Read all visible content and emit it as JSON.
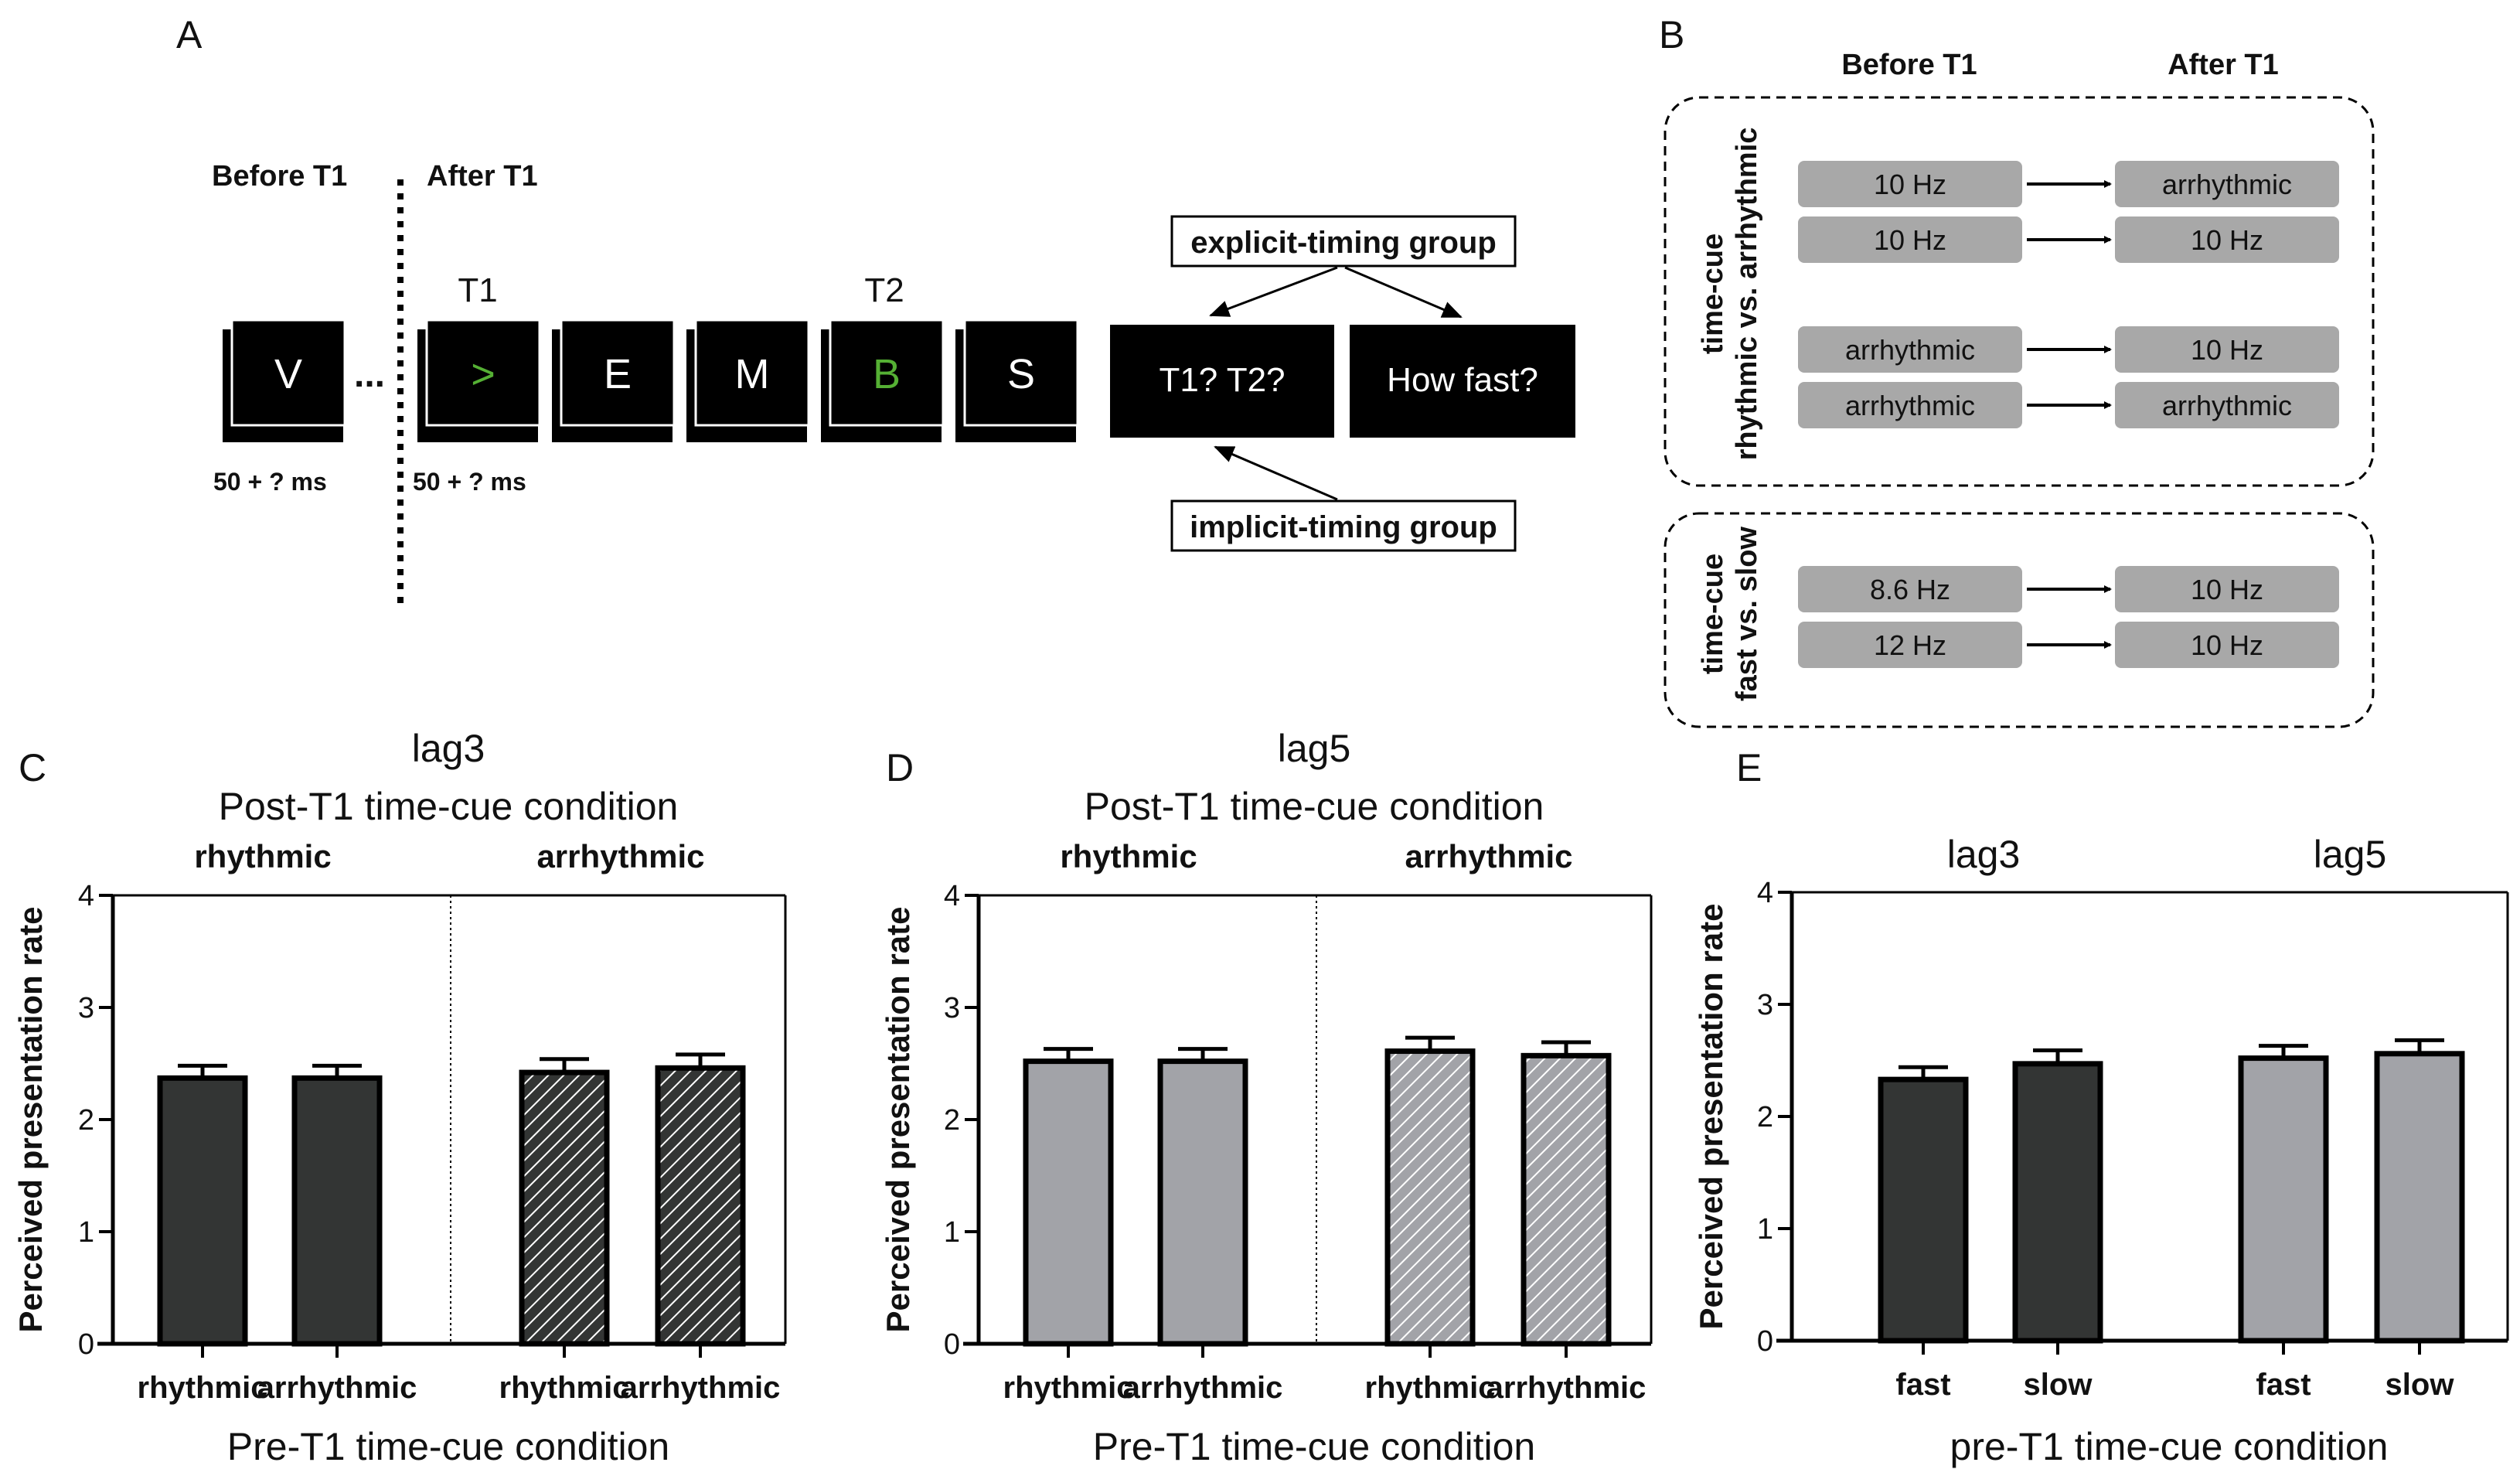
{
  "panels": {
    "A": "A",
    "B": "B",
    "C": "C",
    "D": "D",
    "E": "E"
  },
  "panel_a": {
    "before_label": "Before T1",
    "after_label": "After T1",
    "t1_label": "T1",
    "t2_label": "T2",
    "ellipsis": "...",
    "duration_before": "50 + ? ms",
    "duration_after": "50 + ? ms",
    "frames": [
      {
        "char": "V",
        "color": "#ffffff"
      },
      {
        "char": ">",
        "color": "#55b034"
      },
      {
        "char": "E",
        "color": "#ffffff"
      },
      {
        "char": "M",
        "color": "#ffffff"
      },
      {
        "char": "B",
        "color": "#55b034"
      },
      {
        "char": "S",
        "color": "#ffffff"
      }
    ],
    "question_1": "T1? T2?",
    "question_2": "How fast?",
    "explicit_group": "explicit-timing group",
    "implicit_group": "implicit-timing group"
  },
  "panel_b": {
    "before_label": "Before T1",
    "after_label": "After T1",
    "box1_label_line1": "time-cue",
    "box1_label_line2": "rhythmic vs. arrhythmic",
    "box2_label_line1": "time-cue",
    "box2_label_line2": "fast vs. slow",
    "rows": [
      {
        "before": "10 Hz",
        "after": "arrhythmic"
      },
      {
        "before": "10 Hz",
        "after": "10 Hz"
      },
      {
        "before": "arrhythmic",
        "after": "10 Hz"
      },
      {
        "before": "arrhythmic",
        "after": "arrhythmic"
      },
      {
        "before": "8.6 Hz",
        "after": "10 Hz"
      },
      {
        "before": "12 Hz",
        "after": "10 Hz"
      }
    ]
  },
  "colors": {
    "dark": "#333534",
    "light": "#a2a3a8",
    "bar_border": "#000000",
    "hatch": "#ffffff"
  },
  "chart_data": [
    {
      "type": "bar",
      "panel": "C",
      "title_line1": "lag3",
      "title_line2": "Post-T1 time-cue condition",
      "group_labels": [
        "rhythmic",
        "arrhythmic"
      ],
      "categories": [
        "rhythmic",
        "arrhythmic",
        "rhythmic",
        "arrhythmic"
      ],
      "values": [
        2.37,
        2.37,
        2.42,
        2.46
      ],
      "errors": [
        0.11,
        0.11,
        0.12,
        0.12
      ],
      "hatched": [
        false,
        false,
        true,
        true
      ],
      "fill": [
        "dark",
        "dark",
        "dark",
        "dark"
      ],
      "xlabel": "Pre-T1 time-cue condition",
      "ylabel": "Perceived presentation rate",
      "ylim": [
        0,
        4
      ],
      "yticks": [
        "0",
        "1",
        "2",
        "3",
        "4"
      ]
    },
    {
      "type": "bar",
      "panel": "D",
      "title_line1": "lag5",
      "title_line2": "Post-T1 time-cue condition",
      "group_labels": [
        "rhythmic",
        "arrhythmic"
      ],
      "categories": [
        "rhythmic",
        "arrhythmic",
        "rhythmic",
        "arrhythmic"
      ],
      "values": [
        2.52,
        2.52,
        2.61,
        2.57
      ],
      "errors": [
        0.11,
        0.11,
        0.12,
        0.12
      ],
      "hatched": [
        false,
        false,
        true,
        true
      ],
      "fill": [
        "light",
        "light",
        "light",
        "light"
      ],
      "xlabel": "Pre-T1 time-cue condition",
      "ylabel": "Perceived presentation rate",
      "ylim": [
        0,
        4
      ],
      "yticks": [
        "0",
        "1",
        "2",
        "3",
        "4"
      ]
    },
    {
      "type": "bar",
      "panel": "E",
      "group_labels": [
        "lag3",
        "lag5"
      ],
      "categories": [
        "fast",
        "slow",
        "fast",
        "slow"
      ],
      "values": [
        2.33,
        2.47,
        2.52,
        2.56
      ],
      "errors": [
        0.11,
        0.12,
        0.11,
        0.12
      ],
      "hatched": [
        false,
        false,
        false,
        false
      ],
      "fill": [
        "dark",
        "dark",
        "light",
        "light"
      ],
      "xlabel": "pre-T1 time-cue condition",
      "ylabel": "Perceived presentation rate",
      "ylim": [
        0,
        4
      ],
      "yticks": [
        "0",
        "1",
        "2",
        "3",
        "4"
      ]
    }
  ]
}
